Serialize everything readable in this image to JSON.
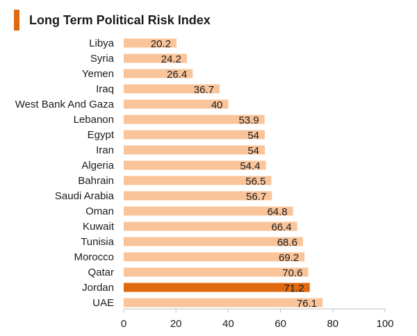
{
  "colors": {
    "accent": "#e0690f",
    "bar": "#f9c49a",
    "highlight": "#e0690f",
    "axis": "#bfbfbf"
  },
  "chart_data": {
    "type": "bar",
    "orientation": "horizontal",
    "title": "Long Term Political Risk Index",
    "categories": [
      "Libya",
      "Syria",
      "Yemen",
      "Iraq",
      "West Bank And Gaza",
      "Lebanon",
      "Egypt",
      "Iran",
      "Algeria",
      "Bahrain",
      "Saudi Arabia",
      "Oman",
      "Kuwait",
      "Tunisia",
      "Morocco",
      "Qatar",
      "Jordan",
      "UAE"
    ],
    "values": [
      20.2,
      24.2,
      26.4,
      36.7,
      40,
      53.9,
      54,
      54,
      54.4,
      56.5,
      56.7,
      64.8,
      66.4,
      68.6,
      69.2,
      70.6,
      71.2,
      76.1
    ],
    "value_labels": [
      "20.2",
      "24.2",
      "26.4",
      "36.7",
      "40",
      "53.9",
      "54",
      "54",
      "54.4",
      "56.5",
      "56.7",
      "64.8",
      "66.4",
      "68.6",
      "69.2",
      "70.6",
      "71.2",
      "76.1"
    ],
    "highlight_category": "Jordan",
    "xlim": [
      0,
      100
    ],
    "xticks": [
      "0",
      "20",
      "40",
      "60",
      "80",
      "100"
    ],
    "xlabel": "",
    "ylabel": "",
    "grid": false
  }
}
